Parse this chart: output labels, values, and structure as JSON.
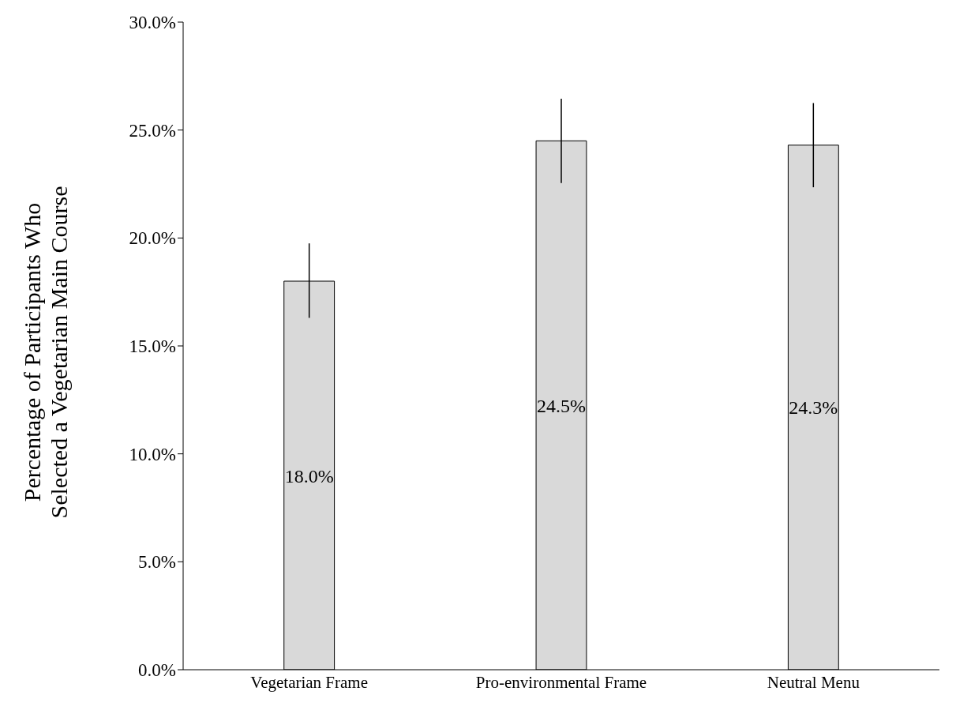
{
  "chart_data": {
    "type": "bar",
    "ylabel": "Percentage of Participants Who Selected a Vegetarian Main Course",
    "categories": [
      "Vegetarian Frame",
      "Pro-environmental Frame",
      "Neutral Menu"
    ],
    "values": [
      18.0,
      24.5,
      24.3
    ],
    "value_labels": [
      "18.0%",
      "24.5%",
      "24.3%"
    ],
    "errors": [
      [
        16.3,
        19.75
      ],
      [
        22.55,
        26.45
      ],
      [
        22.35,
        26.25
      ]
    ],
    "color": "#d9d9d9",
    "ylim": [
      0,
      30
    ],
    "yticks": [
      {
        "value": 0,
        "label": "0.0%"
      },
      {
        "value": 5,
        "label": "5.0%"
      },
      {
        "value": 10,
        "label": "10.0%"
      },
      {
        "value": 15,
        "label": "15.0%"
      },
      {
        "value": 20,
        "label": "20.0%"
      },
      {
        "value": 25,
        "label": "25.0%"
      },
      {
        "value": 30,
        "label": "30.0%"
      }
    ],
    "grid": false,
    "legend": false
  }
}
